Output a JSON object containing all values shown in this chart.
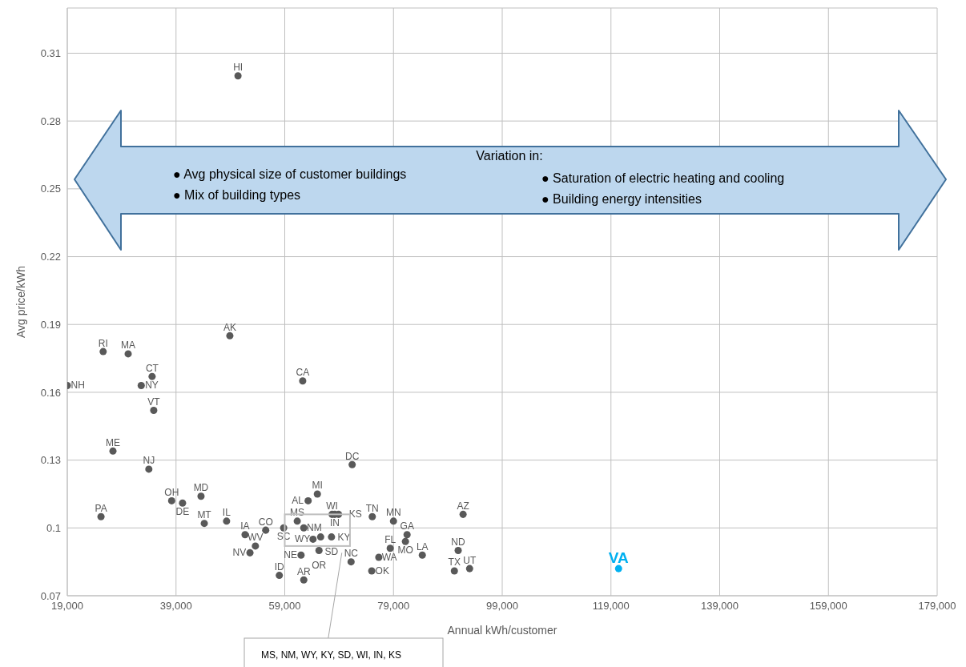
{
  "chart_data": {
    "type": "scatter",
    "xlabel": "Annual kWh/customer",
    "ylabel": "Avg price/kWh",
    "xlim": [
      19000,
      179000
    ],
    "ylim": [
      0.07,
      0.33
    ],
    "xticks": [
      {
        "value": 19000,
        "label": "19,000"
      },
      {
        "value": 39000,
        "label": "39,000"
      },
      {
        "value": 59000,
        "label": "59,000"
      },
      {
        "value": 79000,
        "label": "79,000"
      },
      {
        "value": 99000,
        "label": "99,000"
      },
      {
        "value": 119000,
        "label": "119,000"
      },
      {
        "value": 139000,
        "label": "139,000"
      },
      {
        "value": 159000,
        "label": "159,000"
      },
      {
        "value": 179000,
        "label": "179,000"
      }
    ],
    "yticks": [
      0.07,
      0.1,
      0.13,
      0.16,
      0.19,
      0.22,
      0.25,
      0.28,
      0.31
    ],
    "grid": true,
    "marker": "circle",
    "series": [
      {
        "color": "#595959",
        "x": [
          50400,
          48900,
          25600,
          30200,
          34600,
          32600,
          19000,
          34900,
          62300,
          27400,
          34000,
          71400,
          38200,
          40200,
          43600,
          25200,
          44200,
          48300,
          63300,
          65000,
          61300,
          67700,
          68200,
          68900,
          75100,
          79000,
          91800,
          51700,
          55500,
          58800,
          62500,
          65600,
          67600,
          64200,
          81500,
          81200,
          78400,
          53600,
          52600,
          65300,
          62000,
          71200,
          76300,
          84300,
          90900,
          75000,
          90200,
          93000,
          58000,
          62500
        ],
        "values": [
          0.3,
          0.185,
          0.178,
          0.177,
          0.167,
          0.163,
          0.163,
          0.152,
          0.165,
          0.134,
          0.126,
          0.128,
          0.112,
          0.111,
          0.114,
          0.105,
          0.102,
          0.103,
          0.112,
          0.115,
          0.103,
          0.106,
          0.106,
          0.106,
          0.105,
          0.103,
          0.106,
          0.097,
          0.099,
          0.1,
          0.1,
          0.096,
          0.096,
          0.095,
          0.097,
          0.094,
          0.091,
          0.092,
          0.089,
          0.09,
          0.088,
          0.085,
          0.087,
          0.088,
          0.09,
          0.081,
          0.081,
          0.082,
          0.079,
          0.077
        ],
        "value_labels": [
          "HI",
          "AK",
          "RI",
          "MA",
          "CT",
          "NY",
          "NH",
          "VT",
          "CA",
          "ME",
          "NJ",
          "DC",
          "OH",
          "DE",
          "MD",
          "PA",
          "MT",
          "IL",
          "AL",
          "MI",
          "MS",
          "WI",
          "IN",
          "KS",
          "TN",
          "MN",
          "AZ",
          "IA",
          "CO",
          "SC",
          "NM",
          "KY",
          "SD",
          "WY",
          "GA",
          "MO",
          "FL",
          "WV",
          "NV",
          "OR",
          "NE",
          "NC",
          "WA",
          "LA",
          "ND",
          "OK",
          "TX",
          "UT",
          "ID",
          "AR"
        ]
      },
      {
        "color": "#00b0f0",
        "x": [
          120400
        ],
        "values": [
          0.082
        ],
        "value_labels": [
          "VA"
        ]
      }
    ],
    "annotations": [
      "Variation in:",
      "● Avg physical size of customer buildings",
      "● Mix of building types",
      "● Saturation of electric heating and cooling",
      "● Building energy intensities",
      "MS, NM, WY, KY, SD, WI, IN, KS"
    ]
  }
}
